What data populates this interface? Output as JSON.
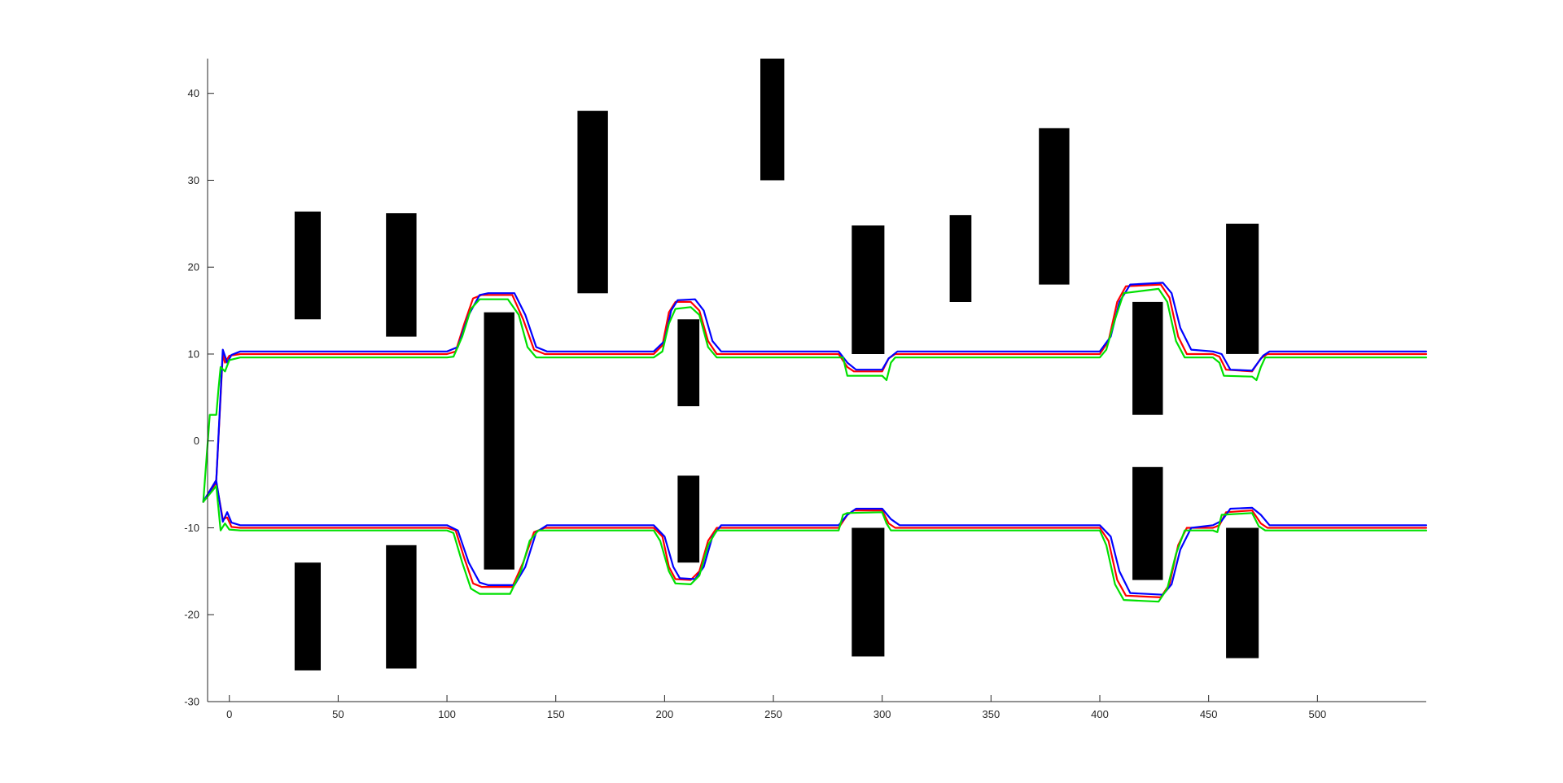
{
  "chart_data": {
    "type": "line",
    "title": "",
    "xlabel": "",
    "ylabel": "",
    "xlim": [
      -10,
      550
    ],
    "ylim": [
      -30,
      44
    ],
    "xticks": [
      0,
      50,
      100,
      150,
      200,
      250,
      300,
      350,
      400,
      450,
      500
    ],
    "yticks": [
      -30,
      -20,
      -10,
      0,
      10,
      20,
      30,
      40
    ],
    "grid": false,
    "legend": null,
    "obstacles": [
      {
        "x0": 30,
        "x1": 42,
        "y0": 14,
        "y1": 26.4
      },
      {
        "x0": 72,
        "x1": 86,
        "y0": 12,
        "y1": 26.2
      },
      {
        "x0": 160,
        "x1": 174,
        "y0": 17,
        "y1": 38
      },
      {
        "x0": 244,
        "x1": 255,
        "y0": 30,
        "y1": 44
      },
      {
        "x0": 286,
        "x1": 301,
        "y0": 10,
        "y1": 24.8
      },
      {
        "x0": 331,
        "x1": 341,
        "y0": 16,
        "y1": 26
      },
      {
        "x0": 372,
        "x1": 386,
        "y0": 18,
        "y1": 36
      },
      {
        "x0": 458,
        "x1": 473,
        "y0": 10,
        "y1": 25
      },
      {
        "x0": 117,
        "x1": 131,
        "y0": -14.8,
        "y1": 14.8
      },
      {
        "x0": 206,
        "x1": 216,
        "y0": 4,
        "y1": 14
      },
      {
        "x0": 415,
        "x1": 429,
        "y0": 3,
        "y1": 16
      },
      {
        "x0": 30,
        "x1": 42,
        "y0": -26.4,
        "y1": -14
      },
      {
        "x0": 72,
        "x1": 86,
        "y0": -26.2,
        "y1": -12
      },
      {
        "x0": 206,
        "x1": 216,
        "y0": -14,
        "y1": -4
      },
      {
        "x0": 286,
        "x1": 301,
        "y0": -24.8,
        "y1": -10
      },
      {
        "x0": 415,
        "x1": 429,
        "y0": -16,
        "y1": -3
      },
      {
        "x0": 458,
        "x1": 473,
        "y0": -25,
        "y1": -10
      }
    ],
    "series": [
      {
        "color": "#ff0000",
        "group": "upper",
        "points": [
          [
            -12,
            -7
          ],
          [
            -6,
            -4.5
          ],
          [
            -3,
            10
          ],
          [
            -2,
            9
          ],
          [
            0,
            9.8
          ],
          [
            5,
            10
          ],
          [
            100,
            10
          ],
          [
            104,
            10.3
          ],
          [
            108,
            13.5
          ],
          [
            112,
            16.4
          ],
          [
            116,
            16.8
          ],
          [
            130,
            16.8
          ],
          [
            135,
            14
          ],
          [
            140,
            10.5
          ],
          [
            145,
            10
          ],
          [
            195,
            10
          ],
          [
            199,
            11
          ],
          [
            202,
            14.8
          ],
          [
            205,
            16
          ],
          [
            212,
            16
          ],
          [
            216,
            15
          ],
          [
            220,
            11.5
          ],
          [
            224,
            10
          ],
          [
            280,
            10
          ],
          [
            284,
            8.5
          ],
          [
            287,
            8
          ],
          [
            300,
            8
          ],
          [
            303,
            9.5
          ],
          [
            306,
            10
          ],
          [
            400,
            10
          ],
          [
            404,
            11.5
          ],
          [
            408,
            16
          ],
          [
            412,
            17.8
          ],
          [
            428,
            18
          ],
          [
            432,
            16.5
          ],
          [
            436,
            12
          ],
          [
            440,
            10
          ],
          [
            452,
            10
          ],
          [
            455,
            9.7
          ],
          [
            458,
            8.2
          ],
          [
            470,
            8
          ],
          [
            474,
            9.5
          ],
          [
            477,
            10
          ],
          [
            550,
            10
          ]
        ]
      },
      {
        "color": "#0000ff",
        "group": "upper",
        "points": [
          [
            -12,
            -7
          ],
          [
            -6,
            -4.5
          ],
          [
            -3,
            10.5
          ],
          [
            -1,
            9
          ],
          [
            1,
            9.9
          ],
          [
            5,
            10.3
          ],
          [
            100,
            10.3
          ],
          [
            105,
            10.8
          ],
          [
            110,
            14.5
          ],
          [
            115,
            16.8
          ],
          [
            119,
            17
          ],
          [
            131,
            17
          ],
          [
            136,
            14.5
          ],
          [
            141,
            10.8
          ],
          [
            146,
            10.3
          ],
          [
            195,
            10.3
          ],
          [
            200,
            11.5
          ],
          [
            203,
            15
          ],
          [
            206,
            16.2
          ],
          [
            214,
            16.3
          ],
          [
            218,
            15
          ],
          [
            222,
            11.5
          ],
          [
            226,
            10.3
          ],
          [
            280,
            10.3
          ],
          [
            284,
            9
          ],
          [
            288,
            8.2
          ],
          [
            300,
            8.2
          ],
          [
            303,
            9.5
          ],
          [
            307,
            10.3
          ],
          [
            400,
            10.3
          ],
          [
            405,
            12
          ],
          [
            409,
            16
          ],
          [
            414,
            18
          ],
          [
            429,
            18.2
          ],
          [
            433,
            17
          ],
          [
            437,
            13
          ],
          [
            442,
            10.5
          ],
          [
            452,
            10.3
          ],
          [
            456,
            10
          ],
          [
            460,
            8.2
          ],
          [
            470,
            8.1
          ],
          [
            475,
            9.8
          ],
          [
            478,
            10.3
          ],
          [
            550,
            10.3
          ]
        ]
      },
      {
        "color": "#00e000",
        "group": "upper",
        "points": [
          [
            -12,
            -7
          ],
          [
            -9,
            3
          ],
          [
            -6,
            3
          ],
          [
            -5,
            6
          ],
          [
            -4,
            8.5
          ],
          [
            -2,
            8
          ],
          [
            0,
            9.3
          ],
          [
            5,
            9.6
          ],
          [
            100,
            9.6
          ],
          [
            103,
            9.7
          ],
          [
            107,
            12
          ],
          [
            111,
            15.2
          ],
          [
            115,
            16.3
          ],
          [
            128,
            16.3
          ],
          [
            133,
            14.5
          ],
          [
            137,
            10.8
          ],
          [
            141,
            9.6
          ],
          [
            195,
            9.6
          ],
          [
            199,
            10.3
          ],
          [
            202,
            13.5
          ],
          [
            205,
            15.2
          ],
          [
            212,
            15.4
          ],
          [
            216,
            14.5
          ],
          [
            220,
            10.8
          ],
          [
            224,
            9.6
          ],
          [
            282,
            9.6
          ],
          [
            284,
            7.5
          ],
          [
            300,
            7.5
          ],
          [
            302,
            7
          ],
          [
            304,
            9
          ],
          [
            306,
            9.6
          ],
          [
            400,
            9.6
          ],
          [
            403,
            10.5
          ],
          [
            407,
            14
          ],
          [
            411,
            17
          ],
          [
            427,
            17.5
          ],
          [
            431,
            16
          ],
          [
            435,
            11.5
          ],
          [
            439,
            9.6
          ],
          [
            452,
            9.6
          ],
          [
            455,
            9
          ],
          [
            457,
            7.5
          ],
          [
            470,
            7.4
          ],
          [
            472,
            7
          ],
          [
            474,
            8.5
          ],
          [
            476,
            9.6
          ],
          [
            550,
            9.6
          ]
        ]
      },
      {
        "color": "#ff0000",
        "group": "lower",
        "points": [
          [
            -12,
            -7
          ],
          [
            -6,
            -4.8
          ],
          [
            -3,
            -9
          ],
          [
            -1,
            -8.8
          ],
          [
            1,
            -9.9
          ],
          [
            5,
            -10
          ],
          [
            100,
            -10
          ],
          [
            104,
            -10.3
          ],
          [
            108,
            -13.5
          ],
          [
            112,
            -16.4
          ],
          [
            116,
            -16.8
          ],
          [
            130,
            -16.8
          ],
          [
            135,
            -14
          ],
          [
            140,
            -10.5
          ],
          [
            145,
            -10
          ],
          [
            195,
            -10
          ],
          [
            199,
            -11
          ],
          [
            202,
            -14.5
          ],
          [
            205,
            -15.9
          ],
          [
            212,
            -16
          ],
          [
            216,
            -15
          ],
          [
            220,
            -11.5
          ],
          [
            224,
            -10
          ],
          [
            280,
            -10
          ],
          [
            284,
            -8.5
          ],
          [
            287,
            -8
          ],
          [
            300,
            -8
          ],
          [
            303,
            -9.5
          ],
          [
            306,
            -10
          ],
          [
            400,
            -10
          ],
          [
            404,
            -11.5
          ],
          [
            408,
            -16
          ],
          [
            412,
            -17.8
          ],
          [
            428,
            -18
          ],
          [
            432,
            -16.5
          ],
          [
            436,
            -12
          ],
          [
            440,
            -10
          ],
          [
            452,
            -10
          ],
          [
            455,
            -9.7
          ],
          [
            458,
            -8.2
          ],
          [
            470,
            -8
          ],
          [
            474,
            -9.5
          ],
          [
            477,
            -10
          ],
          [
            550,
            -10
          ]
        ]
      },
      {
        "color": "#0000ff",
        "group": "lower",
        "points": [
          [
            -12,
            -7
          ],
          [
            -6,
            -4.6
          ],
          [
            -3,
            -9.3
          ],
          [
            -1,
            -8.2
          ],
          [
            1,
            -9.4
          ],
          [
            5,
            -9.7
          ],
          [
            100,
            -9.7
          ],
          [
            105,
            -10.3
          ],
          [
            110,
            -14
          ],
          [
            115,
            -16.3
          ],
          [
            119,
            -16.6
          ],
          [
            131,
            -16.6
          ],
          [
            136,
            -14.5
          ],
          [
            141,
            -10.5
          ],
          [
            146,
            -9.7
          ],
          [
            195,
            -9.7
          ],
          [
            200,
            -11
          ],
          [
            204,
            -14.5
          ],
          [
            207,
            -15.8
          ],
          [
            214,
            -15.9
          ],
          [
            218,
            -14.5
          ],
          [
            222,
            -11
          ],
          [
            226,
            -9.7
          ],
          [
            280,
            -9.7
          ],
          [
            284,
            -8.5
          ],
          [
            288,
            -7.8
          ],
          [
            300,
            -7.8
          ],
          [
            304,
            -9
          ],
          [
            308,
            -9.7
          ],
          [
            400,
            -9.7
          ],
          [
            405,
            -11
          ],
          [
            409,
            -15
          ],
          [
            414,
            -17.5
          ],
          [
            429,
            -17.7
          ],
          [
            433,
            -16.5
          ],
          [
            437,
            -12.5
          ],
          [
            442,
            -10
          ],
          [
            452,
            -9.7
          ],
          [
            456,
            -9.2
          ],
          [
            460,
            -7.8
          ],
          [
            470,
            -7.7
          ],
          [
            474,
            -8.5
          ],
          [
            478,
            -9.7
          ],
          [
            550,
            -9.7
          ]
        ]
      },
      {
        "color": "#00e000",
        "group": "lower",
        "points": [
          [
            -12,
            -7
          ],
          [
            -6,
            -5.2
          ],
          [
            -4,
            -10.3
          ],
          [
            -2,
            -9.5
          ],
          [
            0,
            -10.2
          ],
          [
            5,
            -10.3
          ],
          [
            100,
            -10.3
          ],
          [
            103,
            -10.6
          ],
          [
            107,
            -14
          ],
          [
            111,
            -17
          ],
          [
            115,
            -17.6
          ],
          [
            129,
            -17.6
          ],
          [
            134,
            -15
          ],
          [
            138,
            -11.5
          ],
          [
            142,
            -10.3
          ],
          [
            195,
            -10.3
          ],
          [
            198,
            -11.5
          ],
          [
            202,
            -15
          ],
          [
            205,
            -16.4
          ],
          [
            212,
            -16.5
          ],
          [
            216,
            -15.5
          ],
          [
            220,
            -12
          ],
          [
            224,
            -10.3
          ],
          [
            280,
            -10.3
          ],
          [
            282,
            -8.5
          ],
          [
            284,
            -8.3
          ],
          [
            300,
            -8.2
          ],
          [
            302,
            -9.5
          ],
          [
            304,
            -10.3
          ],
          [
            400,
            -10.3
          ],
          [
            403,
            -12
          ],
          [
            407,
            -16.5
          ],
          [
            411,
            -18.3
          ],
          [
            427,
            -18.5
          ],
          [
            431,
            -17
          ],
          [
            435,
            -13
          ],
          [
            439,
            -10.3
          ],
          [
            452,
            -10.3
          ],
          [
            454,
            -10.5
          ],
          [
            456,
            -8.5
          ],
          [
            470,
            -8.3
          ],
          [
            473,
            -9.8
          ],
          [
            476,
            -10.3
          ],
          [
            550,
            -10.3
          ]
        ]
      }
    ]
  }
}
